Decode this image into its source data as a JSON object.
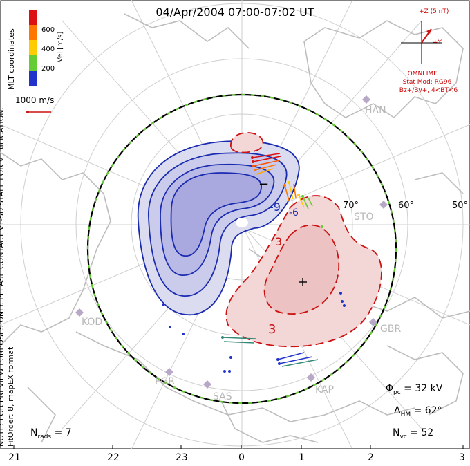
{
  "title": "04/Apr/2004 07:00-07:02 UT",
  "left_notes": {
    "preview": "NOTE: FOR PREVIEW PURPOSES ONLY. PLEASE CONTACT VT-SD STAFF FOR VERIFICATION.",
    "fit": "FitOrder: 8, mapEX format"
  },
  "colorbar": {
    "coords_label": "MLT coordinates",
    "unit_label": "Vel [m/s]",
    "ticks": [
      "600",
      "400",
      "200"
    ],
    "colors": [
      "#dd1111",
      "#ff7700",
      "#ffcc00",
      "#66cc33",
      "#338877",
      "#2233cc"
    ]
  },
  "reference_vector": "1000 m/s",
  "imf": {
    "z_label": "+Z (5 nT)",
    "y_label": "+Y",
    "source": "OMNI IMF",
    "stat_mod": "Stat Mod: RG96",
    "condition": "Bz+/By+, 4<BT<6"
  },
  "latitude_labels": [
    "70°",
    "60°",
    "50°"
  ],
  "stations": [
    "HAN",
    "STO",
    "KOD",
    "PGR",
    "SAS",
    "KAP",
    "GBR"
  ],
  "contour_labels": [
    "-9",
    "-6",
    "3",
    "3"
  ],
  "potential_markers": {
    "min": "−",
    "max": "+"
  },
  "stats": {
    "cpcp_label": "Φ",
    "cpcp_sub": "pc",
    "cpcp_value": "= 32 kV",
    "hm_label": "Λ",
    "hm_sub": "HM",
    "hm_value": "= 62°",
    "nvc_label": "N",
    "nvc_sub": "vc",
    "nvc_value": "= 52",
    "nrads_label": "N",
    "nrads_sub": "rads",
    "nrads_value": "= 7"
  },
  "mlt_ticks": [
    "21",
    "22",
    "23",
    "0",
    "1",
    "2",
    "3"
  ],
  "colors": {
    "negative_fill": "#c8c8ee",
    "negative_line": "#1a2bb0",
    "positive_fill": "#f2d0d0",
    "positive_line": "#cc1111",
    "coast": "#b8b8b8",
    "grid": "#c8c8c8"
  }
}
